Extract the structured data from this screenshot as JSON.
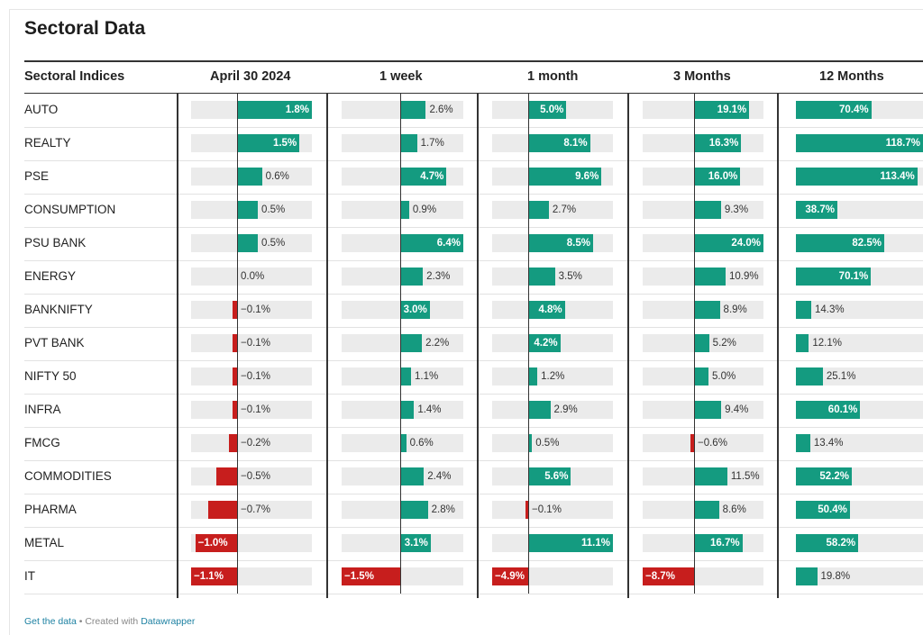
{
  "title": "Sectoral Data",
  "header_label": "Sectoral Indices",
  "footer": {
    "get_data": "Get the data",
    "separator": "•",
    "created_with": "Created with",
    "tool": "Datawrapper"
  },
  "colors": {
    "positive": "#149b80",
    "negative": "#c71e1d",
    "track": "#ebebeb",
    "rule": "#333333"
  },
  "chart_data": {
    "type": "table",
    "columns": [
      "April 30 2024",
      "1 week",
      "1 month",
      "3 Months",
      "12 Months"
    ],
    "rows": [
      {
        "name": "AUTO",
        "values": [
          1.8,
          2.6,
          5.0,
          19.1,
          70.4
        ],
        "labels": [
          "1.8%",
          "2.6%",
          "5.0%",
          "19.1%",
          "70.4%"
        ]
      },
      {
        "name": "REALTY",
        "values": [
          1.5,
          1.7,
          8.1,
          16.3,
          118.7
        ],
        "labels": [
          "1.5%",
          "1.7%",
          "8.1%",
          "16.3%",
          "118.7%"
        ]
      },
      {
        "name": "PSE",
        "values": [
          0.6,
          4.7,
          9.6,
          16.0,
          113.4
        ],
        "labels": [
          "0.6%",
          "4.7%",
          "9.6%",
          "16.0%",
          "113.4%"
        ]
      },
      {
        "name": "CONSUMPTION",
        "values": [
          0.5,
          0.9,
          2.7,
          9.3,
          38.7
        ],
        "labels": [
          "0.5%",
          "0.9%",
          "2.7%",
          "9.3%",
          "38.7%"
        ]
      },
      {
        "name": "PSU BANK",
        "values": [
          0.5,
          6.4,
          8.5,
          24.0,
          82.5
        ],
        "labels": [
          "0.5%",
          "6.4%",
          "8.5%",
          "24.0%",
          "82.5%"
        ]
      },
      {
        "name": "ENERGY",
        "values": [
          0.0,
          2.3,
          3.5,
          10.9,
          70.1
        ],
        "labels": [
          "0.0%",
          "2.3%",
          "3.5%",
          "10.9%",
          "70.1%"
        ]
      },
      {
        "name": "BANKNIFTY",
        "values": [
          -0.1,
          3.0,
          4.8,
          8.9,
          14.3
        ],
        "labels": [
          "−0.1%",
          "3.0%",
          "4.8%",
          "8.9%",
          "14.3%"
        ]
      },
      {
        "name": "PVT BANK",
        "values": [
          -0.1,
          2.2,
          4.2,
          5.2,
          12.1
        ],
        "labels": [
          "−0.1%",
          "2.2%",
          "4.2%",
          "5.2%",
          "12.1%"
        ]
      },
      {
        "name": "NIFTY 50",
        "values": [
          -0.1,
          1.1,
          1.2,
          5.0,
          25.1
        ],
        "labels": [
          "−0.1%",
          "1.1%",
          "1.2%",
          "5.0%",
          "25.1%"
        ]
      },
      {
        "name": "INFRA",
        "values": [
          -0.1,
          1.4,
          2.9,
          9.4,
          60.1
        ],
        "labels": [
          "−0.1%",
          "1.4%",
          "2.9%",
          "9.4%",
          "60.1%"
        ]
      },
      {
        "name": "FMCG",
        "values": [
          -0.2,
          0.6,
          0.5,
          -0.6,
          13.4
        ],
        "labels": [
          "−0.2%",
          "0.6%",
          "0.5%",
          "−0.6%",
          "13.4%"
        ]
      },
      {
        "name": "COMMODITIES",
        "values": [
          -0.5,
          2.4,
          5.6,
          11.5,
          52.2
        ],
        "labels": [
          "−0.5%",
          "2.4%",
          "5.6%",
          "11.5%",
          "52.2%"
        ]
      },
      {
        "name": "PHARMA",
        "values": [
          -0.7,
          2.8,
          -0.1,
          8.6,
          50.4
        ],
        "labels": [
          "−0.7%",
          "2.8%",
          "−0.1%",
          "8.6%",
          "50.4%"
        ]
      },
      {
        "name": "METAL",
        "values": [
          -1.0,
          3.1,
          11.1,
          16.7,
          58.2
        ],
        "labels": [
          "−1.0%",
          "3.1%",
          "11.1%",
          "16.7%",
          "58.2%"
        ]
      },
      {
        "name": "IT",
        "values": [
          -1.1,
          -1.5,
          -4.9,
          -8.7,
          19.8
        ],
        "labels": [
          "−1.1%",
          "−1.5%",
          "−4.9%",
          "−8.7%",
          "19.8%"
        ]
      }
    ]
  }
}
